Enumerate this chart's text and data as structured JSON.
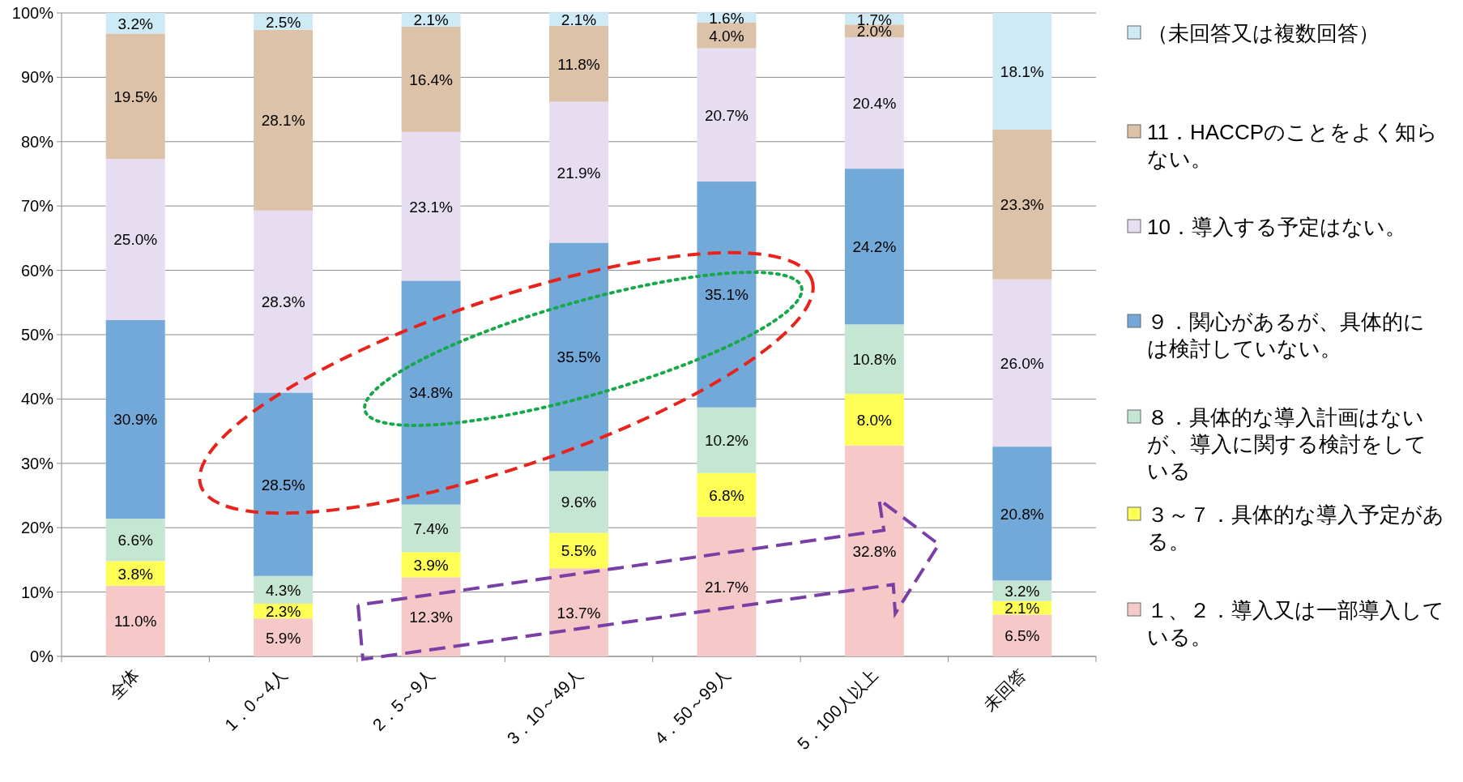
{
  "chart_data": {
    "type": "bar",
    "stacked": true,
    "categories": [
      "全体",
      "1．0～4人",
      "2．5～9人",
      "3．10～49人",
      "4．50～99人",
      "5．100人以上",
      "未回答"
    ],
    "series": [
      {
        "name": "１、２．導入又は一部導入している。",
        "color": "#f6c9c9",
        "values": [
          11.0,
          5.9,
          12.3,
          13.7,
          21.7,
          32.8,
          6.5
        ],
        "value_labels": [
          "11.0%",
          "5.9%",
          "12.3%",
          "13.7%",
          "21.7%",
          "32.8%",
          "6.5%"
        ]
      },
      {
        "name": "３～７．具体的な導入予定がある。",
        "color": "#ffff55",
        "values": [
          3.8,
          2.3,
          3.9,
          5.5,
          6.8,
          8.0,
          2.1
        ],
        "value_labels": [
          "3.8%",
          "2.3%",
          "3.9%",
          "5.5%",
          "6.8%",
          "8.0%",
          "2.1%"
        ]
      },
      {
        "name": "８．具体的な導入計画はないが、導入に関する検討をしている",
        "color": "#c4e6d2",
        "values": [
          6.6,
          4.3,
          7.4,
          9.6,
          10.2,
          10.8,
          3.2
        ],
        "value_labels": [
          "6.6%",
          "4.3%",
          "7.4%",
          "9.6%",
          "10.2%",
          "10.8%",
          "3.2%"
        ]
      },
      {
        "name": "９．関心があるが、具体的には検討していない。",
        "color": "#72a9d8",
        "values": [
          30.9,
          28.5,
          34.8,
          35.5,
          35.1,
          24.2,
          20.8
        ],
        "value_labels": [
          "30.9%",
          "28.5%",
          "34.8%",
          "35.5%",
          "35.1%",
          "24.2%",
          "20.8%"
        ]
      },
      {
        "name": "10．導入する予定はない。",
        "color": "#e6def0",
        "values": [
          25.0,
          28.3,
          23.1,
          21.9,
          20.7,
          20.4,
          26.0
        ],
        "value_labels": [
          "25.0%",
          "28.3%",
          "23.1%",
          "21.9%",
          "20.7%",
          "20.4%",
          "26.0%"
        ]
      },
      {
        "name": "11．HACCPのことをよく知らない。",
        "color": "#dcc2a8",
        "values": [
          19.5,
          28.1,
          16.4,
          11.8,
          4.0,
          2.0,
          23.3
        ],
        "value_labels": [
          "19.5%",
          "28.1%",
          "16.4%",
          "11.8%",
          "4.0%",
          "2.0%",
          "23.3%"
        ]
      },
      {
        "name": "（未回答又は複数回答）",
        "color": "#cdeaf6",
        "values": [
          3.2,
          2.5,
          2.1,
          2.1,
          1.6,
          1.7,
          18.1
        ],
        "value_labels": [
          "3.2%",
          "2.5%",
          "2.1%",
          "2.1%",
          "1.6%",
          "1.7%",
          "18.1%"
        ]
      }
    ],
    "ylim": [
      0,
      100
    ],
    "yticks": [
      {
        "value": 0,
        "label": "0%"
      },
      {
        "value": 10,
        "label": "10%"
      },
      {
        "value": 20,
        "label": "20%"
      },
      {
        "value": 30,
        "label": "30%"
      },
      {
        "value": 40,
        "label": "40%"
      },
      {
        "value": 50,
        "label": "50%"
      },
      {
        "value": 60,
        "label": "60%"
      },
      {
        "value": 70,
        "label": "70%"
      },
      {
        "value": 80,
        "label": "80%"
      },
      {
        "value": 90,
        "label": "90%"
      },
      {
        "value": 100,
        "label": "100%"
      }
    ],
    "grid": "y",
    "legend": "right"
  }
}
